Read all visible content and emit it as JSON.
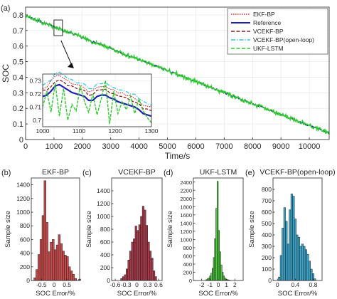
{
  "chart_data": [
    {
      "type": "line",
      "panel_label": "(a)",
      "xlabel": "Time/s",
      "ylabel": "SOC",
      "xlim": [
        0,
        10700
      ],
      "ylim": [
        0,
        0.85
      ],
      "xticks": [
        0,
        1000,
        2000,
        3000,
        4000,
        5000,
        6000,
        7000,
        8000,
        9000,
        10000
      ],
      "yticks": [
        0,
        0.1,
        0.2,
        0.3,
        0.4,
        0.5,
        0.6,
        0.7,
        0.8
      ],
      "xtick_labels": [
        "0",
        "1000",
        "2000",
        "3000",
        "4000",
        "5000",
        "6000",
        "7000",
        "8000",
        "9000",
        "10000"
      ],
      "ytick_labels": [
        "0",
        "0.1",
        "0.2",
        "0.3",
        "0.4",
        "0.5",
        "0.6",
        "0.7",
        "0.8"
      ],
      "grid": true,
      "legend_position": "top-right",
      "series": [
        {
          "name": "EKF-BP",
          "color": "#d62728",
          "style": "dotted",
          "start": 0.795,
          "end": 0.04
        },
        {
          "name": "Reference",
          "color": "#1f1fb4",
          "style": "solid",
          "start": 0.795,
          "end": 0.04
        },
        {
          "name": "VCEKF-BP",
          "color": "#8b1a1a",
          "style": "dashed",
          "start": 0.795,
          "end": 0.04
        },
        {
          "name": "VCEKF-BP(open-loop)",
          "color": "#33c5e8",
          "style": "dashdot",
          "start": 0.795,
          "end": 0.04
        },
        {
          "name": "UKF-LSTM",
          "color": "#2ecc2e",
          "style": "dashed",
          "start": 0.795,
          "end": 0.04
        }
      ],
      "inset": {
        "xlim": [
          1000,
          1300
        ],
        "ylim": [
          0.695,
          0.735
        ],
        "xticks": [
          1000,
          1100,
          1200,
          1300
        ],
        "yticks": [
          0.7,
          0.71,
          0.72,
          0.73
        ],
        "xtick_labels": [
          "1000",
          "1100",
          "1200",
          "1300"
        ],
        "ytick_labels": [
          "0.7",
          "0.71",
          "0.72",
          "0.73"
        ],
        "zoom_box": {
          "x": [
            1000,
            1300
          ],
          "y": [
            0.69,
            0.74
          ]
        },
        "reference": [
          0.718,
          0.719,
          0.722,
          0.726,
          0.727,
          0.725,
          0.723,
          0.721,
          0.72,
          0.719,
          0.718,
          0.715,
          0.715,
          0.718,
          0.719,
          0.719,
          0.717,
          0.716,
          0.714,
          0.713,
          0.712,
          0.711,
          0.71,
          0.708,
          0.705,
          0.704,
          0.703
        ],
        "ukf_lstm": [
          0.71,
          0.722,
          0.706,
          0.728,
          0.703,
          0.724,
          0.7,
          0.712,
          0.707,
          0.726,
          0.714,
          0.706,
          0.72,
          0.704,
          0.716,
          0.73,
          0.697,
          0.722,
          0.705,
          0.714,
          0.708,
          0.718,
          0.705,
          0.716,
          0.707,
          0.702,
          0.698
        ]
      }
    },
    {
      "type": "bar",
      "panel_label": "(b)",
      "title": "EKF-BP",
      "xlabel": "SOC Error/%",
      "ylabel": "Sample size",
      "color": "#c84b4b",
      "xlim": [
        -0.9,
        1.0
      ],
      "ylim": [
        0,
        1500
      ],
      "xticks": [
        -0.5,
        0,
        0.5
      ],
      "xtick_labels": [
        "-0.5",
        "0",
        "0.5"
      ],
      "yticks": [
        0,
        200,
        400,
        600,
        800,
        1000,
        1200,
        1400
      ],
      "ytick_labels": [
        "0",
        "200",
        "400",
        "600",
        "800",
        "1000",
        "1200",
        "1400"
      ],
      "bin_start": -0.8,
      "bin_width": 0.08,
      "values": [
        40,
        160,
        380,
        600,
        950,
        1460,
        850,
        420,
        560,
        600,
        450,
        520,
        670,
        540,
        430,
        370,
        350,
        200,
        140,
        90,
        30,
        0,
        20
      ]
    },
    {
      "type": "bar",
      "panel_label": "(c)",
      "title": "VCEKF-BP",
      "xlabel": "SOC Error/%",
      "ylabel": "Sample size",
      "color": "#a83a4a",
      "xlim": [
        -0.7,
        0.7
      ],
      "ylim": [
        0,
        1600
      ],
      "xticks": [
        -0.6,
        -0.3,
        0,
        0.3,
        0.6
      ],
      "xtick_labels": [
        "-0.6",
        "-0.3",
        "0",
        "0.3",
        "0.6"
      ],
      "yticks": [
        0,
        200,
        400,
        600,
        800,
        1000,
        1200,
        1400
      ],
      "ytick_labels": [
        "0",
        "200",
        "400",
        "600",
        "800",
        "1000",
        "1200",
        "1400"
      ],
      "bin_start": -0.45,
      "bin_width": 0.05,
      "values": [
        30,
        60,
        90,
        180,
        320,
        460,
        600,
        650,
        850,
        780,
        870,
        1000,
        1160,
        1100,
        860,
        600,
        460,
        350,
        150,
        60
      ]
    },
    {
      "type": "bar",
      "panel_label": "(d)",
      "title": "UKF-LSTM",
      "xlabel": "SOC Error/%",
      "ylabel": "Sample size",
      "color": "#4ccf3c",
      "xlim": [
        -3,
        3
      ],
      "ylim": [
        0,
        2500
      ],
      "xticks": [
        -2,
        -1,
        0,
        1,
        2
      ],
      "xtick_labels": [
        "-2",
        "-1",
        "0",
        "1",
        "2"
      ],
      "yticks": [
        0,
        200,
        400,
        600,
        800,
        1000,
        1200,
        1400,
        1600,
        1800,
        2000,
        2200,
        2400
      ],
      "ytick_labels": [
        "0",
        "200",
        "400",
        "600",
        "800",
        "1000",
        "1200",
        "1400",
        "1600",
        "1800",
        "2000",
        "2200",
        "2400"
      ],
      "bin_start": -1.5,
      "bin_width": 0.15,
      "values": [
        20,
        40,
        60,
        110,
        180,
        300,
        560,
        1020,
        1760,
        2420,
        1220,
        700,
        380,
        200,
        110,
        60,
        30,
        20,
        10,
        5
      ]
    },
    {
      "type": "bar",
      "panel_label": "(e)",
      "title": "VCEKF-BP(open-loop)",
      "xlabel": "SOC Error/%",
      "ylabel": "Sample size",
      "color": "#3aa6cc",
      "xlim": [
        -0.1,
        1.0
      ],
      "ylim": [
        0,
        900
      ],
      "xticks": [
        0,
        0.4,
        0.8
      ],
      "xtick_labels": [
        "0",
        "0.4",
        "0.8"
      ],
      "yticks": [
        0,
        100,
        200,
        300,
        400,
        500,
        600,
        700,
        800
      ],
      "ytick_labels": [
        "0",
        "100",
        "200",
        "300",
        "400",
        "500",
        "600",
        "700",
        "800"
      ],
      "bin_start": 0.02,
      "bin_width": 0.04,
      "values": [
        30,
        220,
        460,
        640,
        520,
        320,
        620,
        760,
        740,
        540,
        400,
        380,
        300,
        320,
        300,
        270,
        230,
        170,
        100,
        60,
        15
      ]
    }
  ]
}
